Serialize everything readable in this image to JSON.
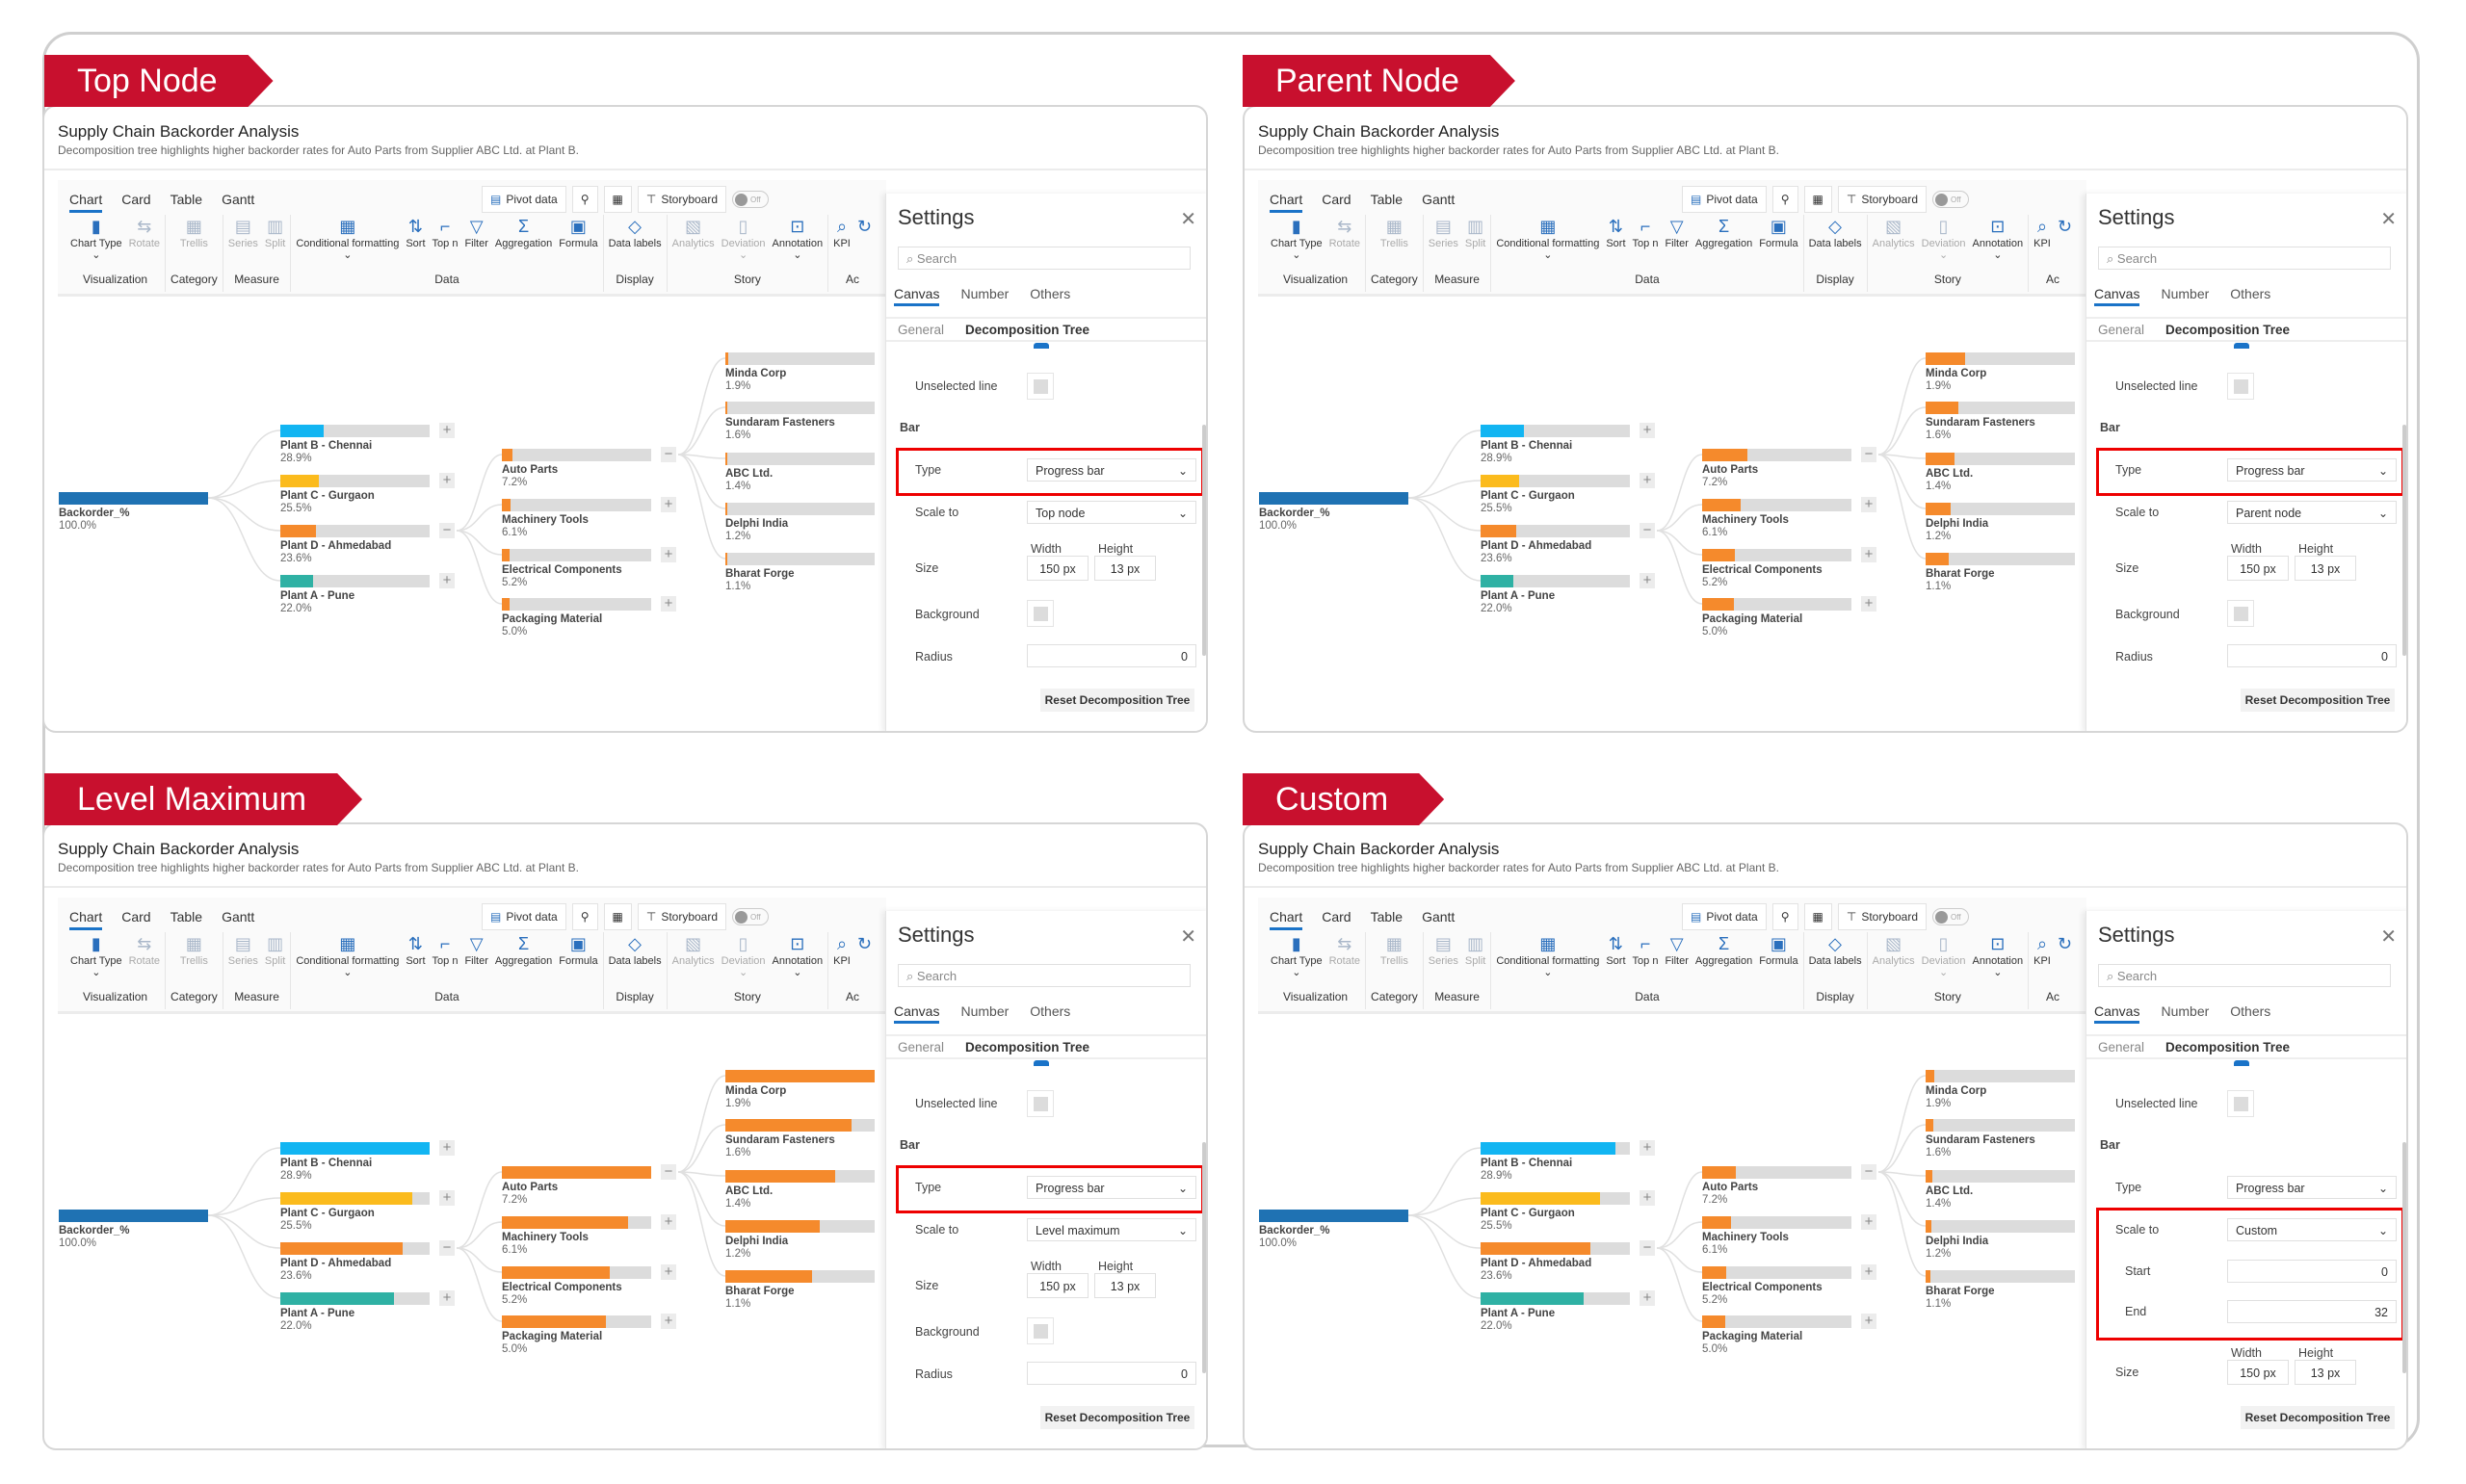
{
  "report": {
    "title": "Supply Chain Backorder Analysis",
    "subtitle": "Decomposition tree highlights higher backorder rates for Auto Parts from Supplier ABC Ltd. at Plant B."
  },
  "toolbar": {
    "tabs": [
      "Chart",
      "Card",
      "Table",
      "Gantt"
    ],
    "pivot": "Pivot data",
    "storyboard": "Storyboard",
    "toggle": "Off",
    "groups": [
      {
        "label": "Visualization",
        "items": [
          {
            "label": "Chart Type",
            "icon": "chart-type-icon",
            "glyph": "▮",
            "chev": "⌄"
          },
          {
            "label": "Rotate",
            "icon": "rotate-icon",
            "glyph": "⇆",
            "disabled": true
          }
        ]
      },
      {
        "label": "Category",
        "items": [
          {
            "label": "Trellis",
            "icon": "trellis-icon",
            "glyph": "▦",
            "disabled": true
          }
        ]
      },
      {
        "label": "Measure",
        "items": [
          {
            "label": "Series",
            "icon": "series-icon",
            "glyph": "▤",
            "disabled": true
          },
          {
            "label": "Split",
            "icon": "split-icon",
            "glyph": "▥",
            "disabled": true
          }
        ]
      },
      {
        "label": "Data",
        "items": [
          {
            "label": "Conditional formatting",
            "icon": "conditional-formatting-icon",
            "glyph": "▦",
            "chev": "⌄"
          },
          {
            "label": "Sort",
            "icon": "sort-icon",
            "glyph": "⇅"
          },
          {
            "label": "Top n",
            "icon": "top-n-icon",
            "glyph": "⌐"
          },
          {
            "label": "Filter",
            "icon": "filter-icon",
            "glyph": "▽"
          },
          {
            "label": "Aggregation",
            "icon": "aggregation-icon",
            "glyph": "Σ"
          },
          {
            "label": "Formula",
            "icon": "formula-icon",
            "glyph": "▣"
          }
        ]
      },
      {
        "label": "Display",
        "items": [
          {
            "label": "Data labels",
            "icon": "data-labels-icon",
            "glyph": "◇"
          }
        ]
      },
      {
        "label": "Story",
        "items": [
          {
            "label": "Analytics",
            "icon": "analytics-icon",
            "glyph": "▧",
            "disabled": true
          },
          {
            "label": "Deviation",
            "icon": "deviation-icon",
            "glyph": "▯",
            "disabled": true,
            "chev": "⌄"
          },
          {
            "label": "Annotation",
            "icon": "annotation-icon",
            "glyph": "⊡",
            "chev": "⌄"
          }
        ]
      },
      {
        "label": "Ac",
        "items": [
          {
            "label": "KPI",
            "icon": "kpi-icon",
            "glyph": "⌕"
          },
          {
            "label": "",
            "icon": "refresh-icon",
            "glyph": "↻"
          }
        ]
      }
    ]
  },
  "settings": {
    "title": "Settings",
    "search_placeholder": "Search",
    "tabs": [
      "Canvas",
      "Number",
      "Others"
    ],
    "subtabs": [
      "General",
      "Decomposition Tree"
    ],
    "unselected_line": "Unselected line",
    "bar_section": "Bar",
    "type_label": "Type",
    "type_value": "Progress bar",
    "scale_label": "Scale to",
    "size_label": "Size",
    "width_label": "Width",
    "width_value": "150 px",
    "height_label": "Height",
    "height_value": "13 px",
    "background_label": "Background",
    "radius_label": "Radius",
    "radius_value": "0",
    "start_label": "Start",
    "end_label": "End",
    "reset": "Reset Decomposition Tree"
  },
  "tree": {
    "root": {
      "label": "Backorder_%",
      "value_text": "100.0%",
      "value": 100,
      "color": "#1f72b3"
    },
    "level1": [
      {
        "label": "Plant B - Chennai",
        "value_text": "28.9%",
        "value": 28.9,
        "color": "#12b5f2",
        "expanded": false
      },
      {
        "label": "Plant C - Gurgaon",
        "value_text": "25.5%",
        "value": 25.5,
        "color": "#fbbb1d",
        "expanded": false
      },
      {
        "label": "Plant D - Ahmedabad",
        "value_text": "23.6%",
        "value": 23.6,
        "color": "#f58a2c",
        "expanded": true
      },
      {
        "label": "Plant A - Pune",
        "value_text": "22.0%",
        "value": 22.0,
        "color": "#2fb1a4",
        "expanded": false
      }
    ],
    "level2": [
      {
        "label": "Auto Parts",
        "value_text": "7.2%",
        "value": 7.2,
        "color": "#f58a2c",
        "expanded": true
      },
      {
        "label": "Machinery Tools",
        "value_text": "6.1%",
        "value": 6.1,
        "color": "#f58a2c",
        "expanded": false
      },
      {
        "label": "Electrical Components",
        "value_text": "5.2%",
        "value": 5.2,
        "color": "#f58a2c",
        "expanded": false
      },
      {
        "label": "Packaging Material",
        "value_text": "5.0%",
        "value": 5.0,
        "color": "#f58a2c",
        "expanded": false
      }
    ],
    "level3": [
      {
        "label": "Minda Corp",
        "value_text": "1.9%",
        "value": 1.9,
        "color": "#f58a2c"
      },
      {
        "label": "Sundaram Fasteners",
        "value_text": "1.6%",
        "value": 1.6,
        "color": "#f58a2c"
      },
      {
        "label": "ABC Ltd.",
        "value_text": "1.4%",
        "value": 1.4,
        "color": "#f58a2c"
      },
      {
        "label": "Delphi India",
        "value_text": "1.2%",
        "value": 1.2,
        "color": "#f58a2c"
      },
      {
        "label": "Bharat Forge",
        "value_text": "1.1%",
        "value": 1.1,
        "color": "#f58a2c"
      }
    ]
  },
  "panels": [
    {
      "tag": "Top Node",
      "mode": "top",
      "scale_to": "Top node",
      "highlight": "type"
    },
    {
      "tag": "Parent Node",
      "mode": "parent",
      "scale_to": "Parent node",
      "highlight": "type"
    },
    {
      "tag": "Level Maximum",
      "mode": "level",
      "scale_to": "Level maximum",
      "highlight": "type"
    },
    {
      "tag": "Custom",
      "mode": "custom",
      "scale_to": "Custom",
      "start": "0",
      "end": "32",
      "highlight": "scale"
    }
  ],
  "colors": {
    "tag": "#c8102e",
    "highlight": "#ee0000",
    "track": "#dcdcdc",
    "selected_line": "#1a73c8"
  }
}
